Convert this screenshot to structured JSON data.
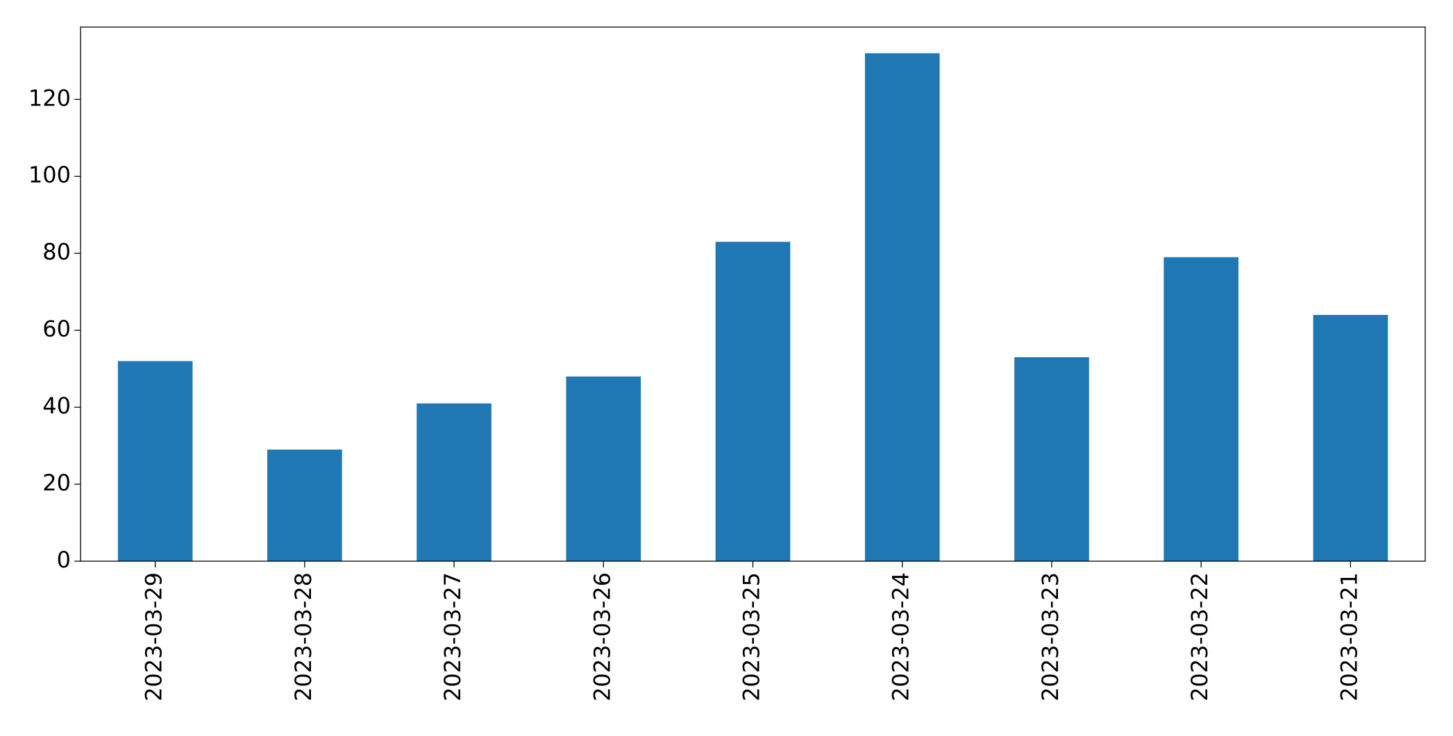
{
  "chart_data": {
    "type": "bar",
    "categories": [
      "2023-03-29",
      "2023-03-28",
      "2023-03-27",
      "2023-03-26",
      "2023-03-25",
      "2023-03-24",
      "2023-03-23",
      "2023-03-22",
      "2023-03-21"
    ],
    "values": [
      52,
      29,
      41,
      48,
      83,
      132,
      53,
      79,
      64
    ],
    "color": "#1f77b4",
    "ylim": [
      0,
      138.8
    ],
    "yticks": [
      0,
      20,
      40,
      60,
      80,
      100,
      120
    ],
    "grid": false
  }
}
